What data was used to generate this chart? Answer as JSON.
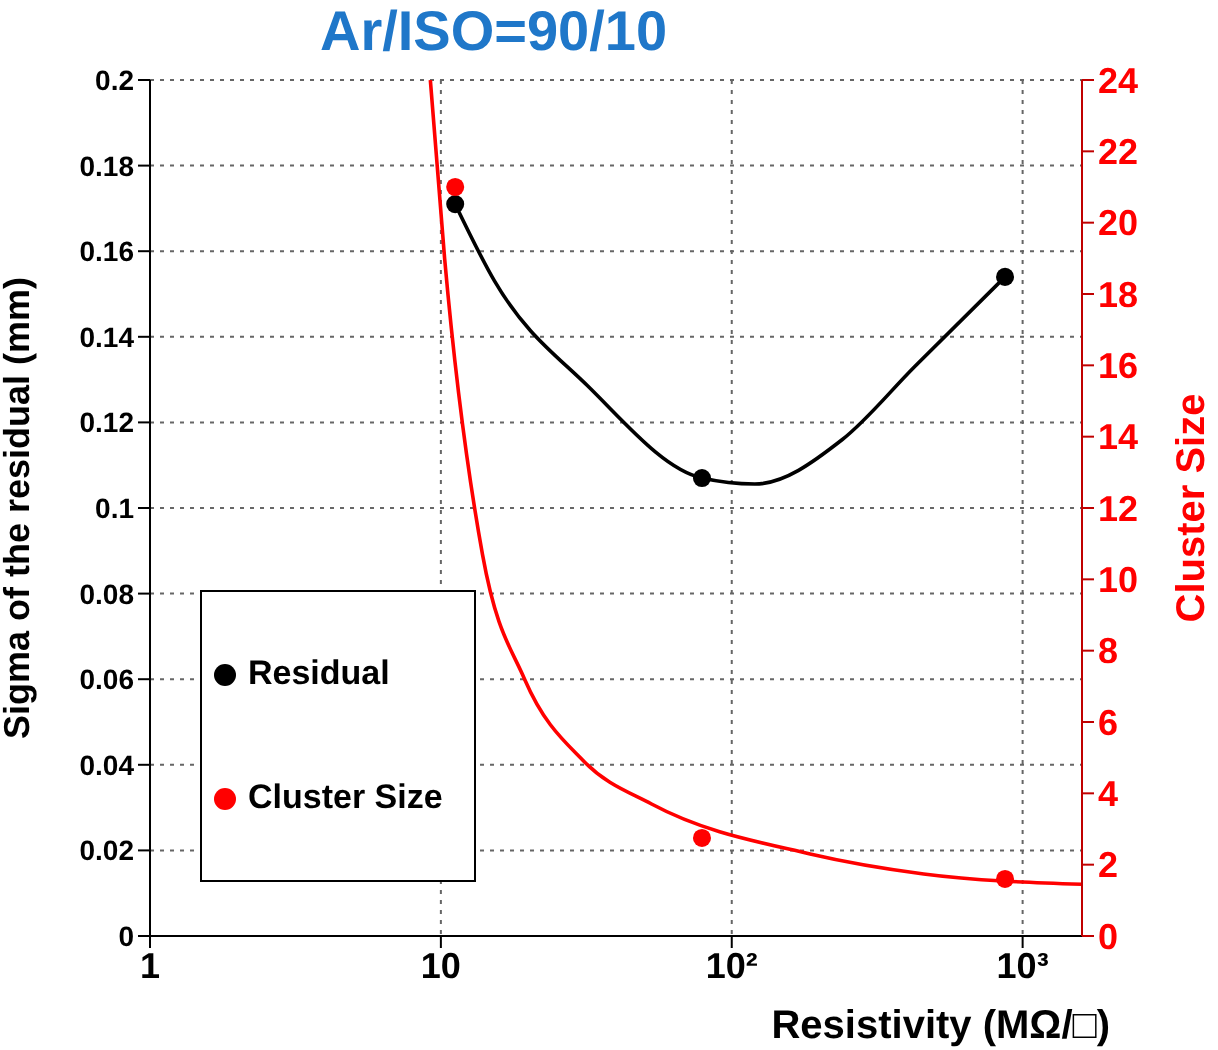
{
  "chart_data": {
    "type": "scatter",
    "title": "Ar/ISO=90/10",
    "xlabel": "Resistivity (MΩ/□)",
    "ylabel": "Sigma of the residual (mm)",
    "y2label": "Cluster Size",
    "log": "x",
    "xlim": [
      1,
      1600
    ],
    "xticks": [
      1,
      10,
      {
        "value": 100,
        "label": "10²"
      },
      {
        "value": 1000,
        "label": "10³"
      }
    ],
    "ylim": [
      0,
      0.2
    ],
    "yticks": [
      0,
      0.02,
      0.04,
      0.06,
      0.08,
      0.1,
      0.12,
      0.14,
      0.16,
      0.18,
      0.2
    ],
    "y2lim": [
      0,
      24
    ],
    "y2ticks": [
      0,
      2,
      4,
      6,
      8,
      10,
      12,
      14,
      16,
      18,
      20,
      22,
      24
    ],
    "grid": true,
    "legend": "bottom left",
    "marker": "circle",
    "series": [
      {
        "name": "Residual",
        "color": "#000000",
        "x": [
          11.2,
          79,
          870
        ],
        "values": [
          0.171,
          0.107,
          0.154
        ]
      },
      {
        "name": "Cluster Size",
        "axis": "y2",
        "color": "#ff0000",
        "x": [
          11.2,
          79,
          870
        ],
        "values": [
          21.0,
          2.75,
          1.6
        ]
      },
      {
        "type": "line",
        "marker": "none",
        "color": "#000000",
        "x": [
          11.2,
          15.3,
          32,
          79,
          120,
          240,
          425,
          870
        ],
        "values": [
          0.171,
          0.153,
          0.1285,
          0.107,
          0.1056,
          0.116,
          0.133,
          0.154
        ]
      },
      {
        "type": "line",
        "marker": "none",
        "axis": "y2",
        "color": "#ff0000",
        "x": [
          9.2,
          10.3,
          13.9,
          19.4,
          31,
          53,
          186,
          457,
          1600
        ],
        "values": [
          24,
          19.0,
          10.7,
          7.2,
          4.9,
          3.7,
          2.3,
          1.74,
          1.45
        ]
      }
    ]
  }
}
